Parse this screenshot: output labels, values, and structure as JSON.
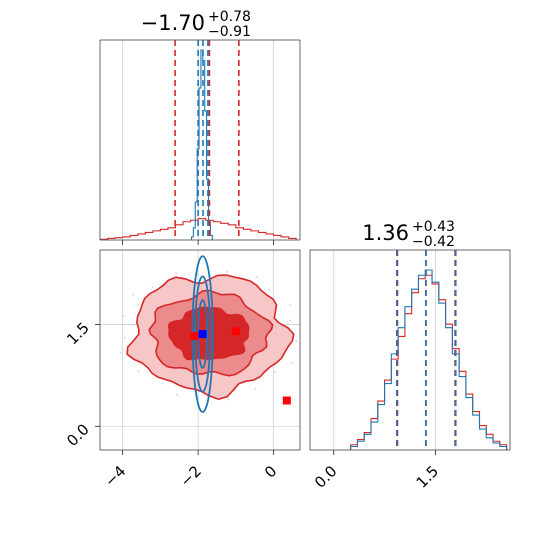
{
  "chart_data": {
    "type": "corner",
    "colors": {
      "series_a": "#d62728",
      "series_b": "#1f77b4"
    },
    "grid": true,
    "panels": {
      "param1_hist": {
        "title": {
          "median": "−1.70",
          "upper": "+0.78",
          "lower": "−0.91"
        },
        "xlim": [
          -4.6,
          0.7
        ],
        "series_a": {
          "quantiles": [
            -2.61,
            -1.7,
            -0.92
          ],
          "hist_x": [
            -4.5,
            -4.3,
            -4.1,
            -3.9,
            -3.7,
            -3.5,
            -3.3,
            -3.1,
            -2.9,
            -2.7,
            -2.5,
            -2.3,
            -2.1,
            -1.9,
            -1.7,
            -1.5,
            -1.3,
            -1.1,
            -0.9,
            -0.7,
            -0.5,
            -0.3,
            -0.1,
            0.1,
            0.3,
            0.5
          ],
          "hist_y": [
            0.5,
            1,
            1.5,
            2,
            3,
            4,
            5,
            6,
            7,
            8,
            10,
            12,
            13,
            14,
            13,
            12,
            11,
            10,
            8,
            7,
            6,
            5,
            4,
            3,
            2,
            1
          ]
        },
        "series_b": {
          "quantiles": [
            -2.0,
            -1.87,
            -1.74
          ],
          "hist_x": [
            -2.15,
            -2.1,
            -2.05,
            -2.0,
            -1.95,
            -1.9,
            -1.85,
            -1.8,
            -1.75,
            -1.7,
            -1.65
          ],
          "hist_y": [
            2,
            8,
            25,
            60,
            100,
            125,
            118,
            85,
            40,
            12,
            3
          ]
        }
      },
      "param2_hist": {
        "title": {
          "median": "1.36",
          "upper": "+0.43",
          "lower": "−0.42"
        },
        "xlim": [
          -0.35,
          2.6
        ],
        "xticks": [
          "0.0",
          "1.5"
        ],
        "series_a": {
          "quantiles": [
            0.94,
            1.36,
            1.79
          ]
        },
        "series_b": {
          "quantiles": [
            0.93,
            1.36,
            1.8
          ]
        },
        "hist_x": [
          0.3,
          0.4,
          0.5,
          0.6,
          0.7,
          0.8,
          0.9,
          1.0,
          1.1,
          1.2,
          1.3,
          1.4,
          1.5,
          1.6,
          1.7,
          1.8,
          1.9,
          2.0,
          2.1,
          2.2,
          2.3,
          2.4,
          2.5
        ],
        "hist_a_y": [
          3,
          6,
          10,
          18,
          28,
          40,
          52,
          65,
          78,
          90,
          98,
          100,
          95,
          86,
          72,
          58,
          45,
          32,
          22,
          14,
          9,
          5,
          3
        ],
        "hist_b_y": [
          2,
          5,
          9,
          16,
          26,
          38,
          55,
          70,
          82,
          92,
          100,
          103,
          96,
          84,
          70,
          55,
          42,
          30,
          20,
          12,
          7,
          4,
          2
        ]
      },
      "joint": {
        "xlim": [
          -4.6,
          0.7
        ],
        "ylim": [
          -0.35,
          2.6
        ],
        "xticks": [
          "−4",
          "−2",
          "0"
        ],
        "yticks": [
          "0.0",
          "1.5"
        ],
        "series_a": {
          "center": [
            -1.7,
            1.36
          ],
          "contours": [
            {
              "level": "1sigma",
              "rx": 1.05,
              "ry": 0.38
            },
            {
              "level": "2sigma",
              "rx": 1.55,
              "ry": 0.6
            },
            {
              "level": "3sigma",
              "rx": 2.05,
              "ry": 0.86
            }
          ],
          "markers": [
            [
              -2.1,
              1.33
            ],
            [
              -1.0,
              1.4
            ],
            [
              0.35,
              0.38
            ]
          ]
        },
        "series_b": {
          "center": [
            -1.88,
            1.36
          ],
          "contours": [
            {
              "level": "1sigma",
              "rx": 0.12,
              "ry": 0.5
            },
            {
              "level": "2sigma",
              "rx": 0.2,
              "ry": 0.85
            },
            {
              "level": "3sigma",
              "rx": 0.27,
              "ry": 1.15
            }
          ],
          "markers": [
            [
              -1.88,
              1.36
            ]
          ]
        }
      }
    }
  }
}
